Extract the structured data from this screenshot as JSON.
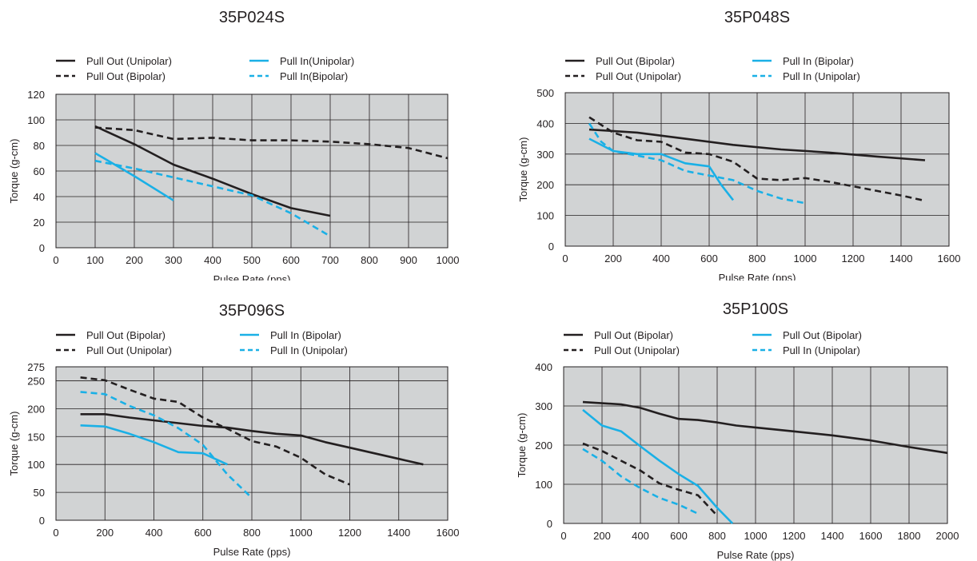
{
  "chart_data": [
    {
      "type": "line",
      "title": "35P024S",
      "xlabel": "Pulse Rate (pps)",
      "ylabel": "Torque (g-cm)",
      "xlim": [
        0,
        1000
      ],
      "ylim": [
        0,
        120
      ],
      "xticks": [
        "0",
        "100",
        "200",
        "300",
        "400",
        "500",
        "600",
        "700",
        "800",
        "900",
        "1000"
      ],
      "yticks": [
        "0",
        "20",
        "40",
        "60",
        "80",
        "100",
        "120"
      ],
      "grid": true,
      "legend_position": "top",
      "series": [
        {
          "name": "Pull Out (Unipolar)",
          "color": "#231f20",
          "dash": "solid",
          "x": [
            100,
            200,
            300,
            400,
            500,
            600,
            700
          ],
          "y": [
            95,
            81,
            65,
            54,
            42,
            31,
            25
          ]
        },
        {
          "name": "Pull Out (Bipolar)",
          "color": "#231f20",
          "dash": "dashed",
          "x": [
            100,
            200,
            300,
            400,
            500,
            600,
            700,
            800,
            900,
            1000
          ],
          "y": [
            94,
            92,
            85,
            86,
            84,
            84,
            83,
            81,
            78,
            70
          ]
        },
        {
          "name": "Pull In(Unipolar)",
          "color": "#1ab0e6",
          "dash": "solid",
          "x": [
            100,
            200,
            300
          ],
          "y": [
            74,
            56,
            37
          ]
        },
        {
          "name": "Pull In(Bipolar)",
          "color": "#1ab0e6",
          "dash": "dashed",
          "x": [
            100,
            200,
            300,
            400,
            500,
            600,
            700
          ],
          "y": [
            68,
            62,
            55,
            48,
            41,
            27,
            9
          ]
        }
      ]
    },
    {
      "type": "line",
      "title": "35P048S",
      "xlabel": "Pulse Rate (pps)",
      "ylabel": "Torque (g-cm)",
      "xlim": [
        0,
        1600
      ],
      "ylim": [
        0,
        500
      ],
      "xticks": [
        "0",
        "200",
        "400",
        "600",
        "800",
        "1000",
        "1200",
        "1400",
        "1600"
      ],
      "yticks": [
        "0",
        "100",
        "200",
        "300",
        "400",
        "500"
      ],
      "grid": true,
      "legend_position": "top",
      "series": [
        {
          "name": "Pull Out (Bipolar)",
          "color": "#231f20",
          "dash": "solid",
          "x": [
            100,
            300,
            500,
            700,
            900,
            1100,
            1300,
            1500
          ],
          "y": [
            380,
            370,
            350,
            330,
            315,
            305,
            292,
            280
          ]
        },
        {
          "name": "Pull Out (Unipolar)",
          "color": "#231f20",
          "dash": "dashed",
          "x": [
            100,
            200,
            300,
            400,
            500,
            600,
            700,
            800,
            900,
            1000,
            1100,
            1200,
            1300,
            1400,
            1500
          ],
          "y": [
            420,
            370,
            345,
            340,
            305,
            300,
            275,
            220,
            215,
            222,
            210,
            195,
            180,
            165,
            148
          ]
        },
        {
          "name": "Pull In (Bipolar)",
          "color": "#1ab0e6",
          "dash": "solid",
          "x": [
            100,
            200,
            300,
            400,
            500,
            600,
            650,
            700
          ],
          "y": [
            350,
            310,
            300,
            300,
            270,
            260,
            200,
            150
          ]
        },
        {
          "name": "Pull In (Unipolar)",
          "color": "#1ab0e6",
          "dash": "dashed",
          "x": [
            100,
            150,
            200,
            300,
            400,
            500,
            600,
            700,
            800,
            900,
            1000
          ],
          "y": [
            400,
            340,
            310,
            295,
            280,
            245,
            230,
            215,
            180,
            155,
            140
          ]
        }
      ]
    },
    {
      "type": "line",
      "title": "35P096S",
      "xlabel": "Pulse Rate (pps)",
      "ylabel": "Torque (g-cm)",
      "xlim": [
        0,
        1600
      ],
      "ylim": [
        0,
        275
      ],
      "xticks": [
        "0",
        "200",
        "400",
        "600",
        "800",
        "1000",
        "1200",
        "1400",
        "1600"
      ],
      "yticks": [
        "0",
        "50",
        "100",
        "150",
        "200",
        "250",
        "275"
      ],
      "grid": true,
      "legend_position": "top",
      "series": [
        {
          "name": "Pull Out (Bipolar)",
          "color": "#231f20",
          "dash": "solid",
          "x": [
            100,
            200,
            300,
            400,
            500,
            600,
            700,
            800,
            900,
            1000,
            1100,
            1200,
            1300,
            1400,
            1500
          ],
          "y": [
            190,
            190,
            184,
            179,
            174,
            169,
            166,
            160,
            155,
            152,
            140,
            130,
            120,
            110,
            100
          ]
        },
        {
          "name": "Pull Out (Unipolar)",
          "color": "#231f20",
          "dash": "dashed",
          "x": [
            100,
            200,
            300,
            400,
            500,
            600,
            700,
            800,
            900,
            1000,
            1100,
            1200
          ],
          "y": [
            256,
            251,
            234,
            218,
            212,
            184,
            164,
            142,
            132,
            112,
            82,
            64
          ]
        },
        {
          "name": "Pull In (Bipolar)",
          "color": "#1ab0e6",
          "dash": "solid",
          "x": [
            100,
            200,
            300,
            400,
            500,
            600,
            700
          ],
          "y": [
            170,
            168,
            155,
            140,
            122,
            120,
            100
          ]
        },
        {
          "name": "Pull In (Unipolar)",
          "color": "#1ab0e6",
          "dash": "dashed",
          "x": [
            100,
            200,
            300,
            400,
            500,
            600,
            700,
            800
          ],
          "y": [
            230,
            226,
            205,
            188,
            165,
            135,
            82,
            40
          ]
        }
      ]
    },
    {
      "type": "line",
      "title": "35P100S",
      "xlabel": "Pulse Rate (pps)",
      "ylabel": "Torque (g-cm)",
      "xlim": [
        0,
        2000
      ],
      "ylim": [
        0,
        400
      ],
      "xticks": [
        "0",
        "200",
        "400",
        "600",
        "800",
        "1000",
        "1200",
        "1400",
        "1600",
        "1800",
        "2000"
      ],
      "yticks": [
        "0",
        "100",
        "200",
        "300",
        "400"
      ],
      "grid": true,
      "legend_position": "top",
      "series": [
        {
          "name": "Pull Out (Bipolar)",
          "color": "#231f20",
          "dash": "solid",
          "x": [
            100,
            300,
            400,
            500,
            600,
            700,
            800,
            900,
            1000,
            1200,
            1400,
            1600,
            1800,
            2000
          ],
          "y": [
            310,
            304,
            295,
            280,
            267,
            264,
            258,
            250,
            245,
            235,
            225,
            212,
            195,
            180
          ]
        },
        {
          "name": "Pull Out (Unipolar)",
          "color": "#231f20",
          "dash": "dashed",
          "x": [
            100,
            200,
            300,
            400,
            500,
            600,
            700,
            800
          ],
          "y": [
            204,
            185,
            160,
            135,
            102,
            86,
            72,
            20
          ]
        },
        {
          "name": "Pull Out (Bipolar)",
          "color": "#1ab0e6",
          "dash": "solid",
          "x": [
            100,
            200,
            300,
            400,
            500,
            600,
            700,
            800,
            880
          ],
          "y": [
            290,
            250,
            235,
            197,
            160,
            126,
            96,
            40,
            0
          ]
        },
        {
          "name": "Pull In (Unipolar)",
          "color": "#1ab0e6",
          "dash": "dashed",
          "x": [
            100,
            200,
            300,
            400,
            500,
            600,
            700
          ],
          "y": [
            190,
            160,
            120,
            90,
            65,
            48,
            25
          ]
        }
      ]
    }
  ]
}
